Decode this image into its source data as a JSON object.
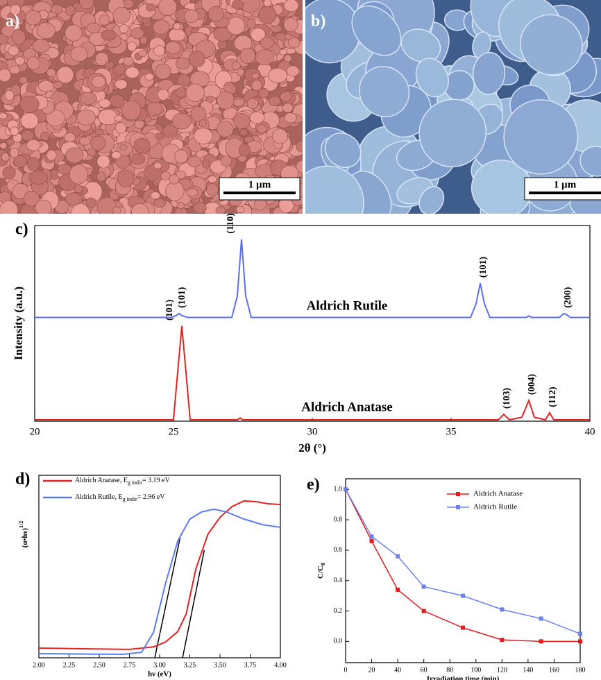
{
  "images": [
    {
      "label": "a)",
      "scale_bar": "1 µm"
    },
    {
      "label": "b)",
      "scale_bar": "1 µm"
    }
  ],
  "chart_data": [
    {
      "type": "line",
      "panel": "c)",
      "xlabel": "2θ (°)",
      "ylabel": "Intensity (a.u.)",
      "xlim": [
        20,
        40
      ],
      "xticks": [
        20,
        25,
        30,
        35,
        40
      ],
      "ylim": [
        0,
        100
      ],
      "series": [
        {
          "name": "Aldrich Rutile",
          "color": "#5b6ef0",
          "x": [
            20,
            24.9,
            25.1,
            25.2,
            25.3,
            25.5,
            27.1,
            27.3,
            27.45,
            27.6,
            27.8,
            35.7,
            35.9,
            36.05,
            36.2,
            36.4,
            37.7,
            37.8,
            37.9,
            38.9,
            39.05,
            39.15,
            39.3,
            40
          ],
          "values": [
            53,
            53,
            54,
            55,
            54,
            53,
            53,
            64,
            93,
            64,
            53,
            53,
            60,
            70.5,
            60,
            53,
            53,
            53.8,
            53,
            53,
            55,
            54.5,
            53,
            53
          ],
          "peak_labels": [
            {
              "text": "(101)",
              "x": 25.2
            },
            {
              "text": "(110)",
              "x": 26.95
            },
            {
              "text": "(101)",
              "x": 36.05
            },
            {
              "text": "(200)",
              "x": 39.1
            }
          ]
        },
        {
          "name": "Aldrich Anatase",
          "color": "#e82020",
          "x": [
            20,
            25.0,
            25.15,
            25.3,
            25.45,
            25.6,
            27.3,
            27.4,
            27.5,
            36.7,
            36.9,
            37.1,
            37.55,
            37.8,
            38.0,
            38.4,
            38.55,
            38.7,
            40
          ],
          "values": [
            0.7,
            0.7,
            25,
            48.6,
            25,
            0.7,
            0.7,
            1.6,
            0.7,
            0.7,
            3.5,
            0.7,
            2,
            10.6,
            2,
            0.7,
            4.3,
            0.7,
            0.7
          ],
          "peak_labels": [
            {
              "text": "(101)",
              "x": 24.75
            },
            {
              "text": "(103)",
              "x": 36.9
            },
            {
              "text": "(004)",
              "x": 37.8
            },
            {
              "text": "(112)",
              "x": 38.55
            }
          ]
        }
      ]
    },
    {
      "type": "line",
      "panel": "d)",
      "xlabel": "hν (eV)",
      "ylabel": "(α•hν)",
      "ylabel_sup": "1/2",
      "xlim": [
        2,
        4
      ],
      "xticks": [
        {
          "value": 2,
          "label": "2.00"
        },
        {
          "value": 2.25,
          "label": "2.25"
        },
        {
          "value": 2.5,
          "label": "2.50"
        },
        {
          "value": 2.75,
          "label": "2.75"
        },
        {
          "value": 3,
          "label": "3.00"
        },
        {
          "value": 3.25,
          "label": "3.25"
        },
        {
          "value": 3.5,
          "label": "3.50"
        },
        {
          "value": 3.75,
          "label": "3.75"
        },
        {
          "value": 4,
          "label": "4.00"
        }
      ],
      "ylim": [
        0,
        100
      ],
      "series": [
        {
          "color": "#e82020",
          "legend": [
            "Aldrich Anatase, E",
            "g indir",
            "= 3.19 eV"
          ],
          "x": [
            2.0,
            2.75,
            2.95,
            3.05,
            3.15,
            3.22,
            3.3,
            3.4,
            3.5,
            3.6,
            3.7,
            3.8,
            3.9,
            4.0
          ],
          "values": [
            5.3,
            4.6,
            6,
            8.7,
            14.4,
            24,
            48.7,
            67.7,
            77,
            82.9,
            86,
            85.5,
            84.4,
            84
          ]
        },
        {
          "color": "#5b7cf0",
          "legend": [
            "Aldrich Rutile, E",
            "g indir",
            "= 2.96 eV"
          ],
          "x": [
            2.0,
            2.7,
            2.85,
            2.95,
            3.05,
            3.15,
            3.25,
            3.35,
            3.45,
            3.55,
            3.7,
            3.85,
            4.0
          ],
          "values": [
            2.3,
            1.9,
            3,
            14,
            41,
            64,
            76,
            80,
            81.4,
            80,
            76,
            73,
            71.5
          ]
        }
      ],
      "fit_lines": {
        "color": "#000000",
        "lines": [
          {
            "x": [
              2.96,
              3.17
            ],
            "values": [
              0,
              66
            ]
          },
          {
            "x": [
              3.19,
              3.37
            ],
            "values": [
              0,
              59
            ]
          }
        ]
      }
    },
    {
      "type": "line",
      "panel": "e)",
      "xlabel": "Irradiation time (min)",
      "ylabel": "C/C",
      "ylabel_sub": "0",
      "xlim": [
        0,
        180
      ],
      "xticks": [
        0,
        20,
        40,
        60,
        80,
        100,
        120,
        140,
        160,
        180
      ],
      "ylim": [
        -0.14,
        1.07
      ],
      "yticks": [
        {
          "value": 0,
          "label": "0.0"
        },
        {
          "value": 0.2,
          "label": "0.2"
        },
        {
          "value": 0.4,
          "label": "0.4"
        },
        {
          "value": 0.6,
          "label": "0.6"
        },
        {
          "value": 0.8,
          "label": "0.8"
        },
        {
          "value": 1,
          "label": "1.0"
        }
      ],
      "markers": true,
      "series": [
        {
          "name": "Aldrich Anatase",
          "color": "#e41a1c",
          "x": [
            0,
            20,
            40,
            60,
            90,
            120,
            150,
            180
          ],
          "values": [
            1.0,
            0.66,
            0.34,
            0.2,
            0.09,
            0.01,
            0,
            0
          ]
        },
        {
          "name": "Aldrich Rutile",
          "color": "#6a82f0",
          "x": [
            0,
            20,
            40,
            60,
            90,
            120,
            150,
            180
          ],
          "values": [
            1.0,
            0.69,
            0.56,
            0.36,
            0.3,
            0.21,
            0.15,
            0.05
          ]
        }
      ]
    }
  ]
}
